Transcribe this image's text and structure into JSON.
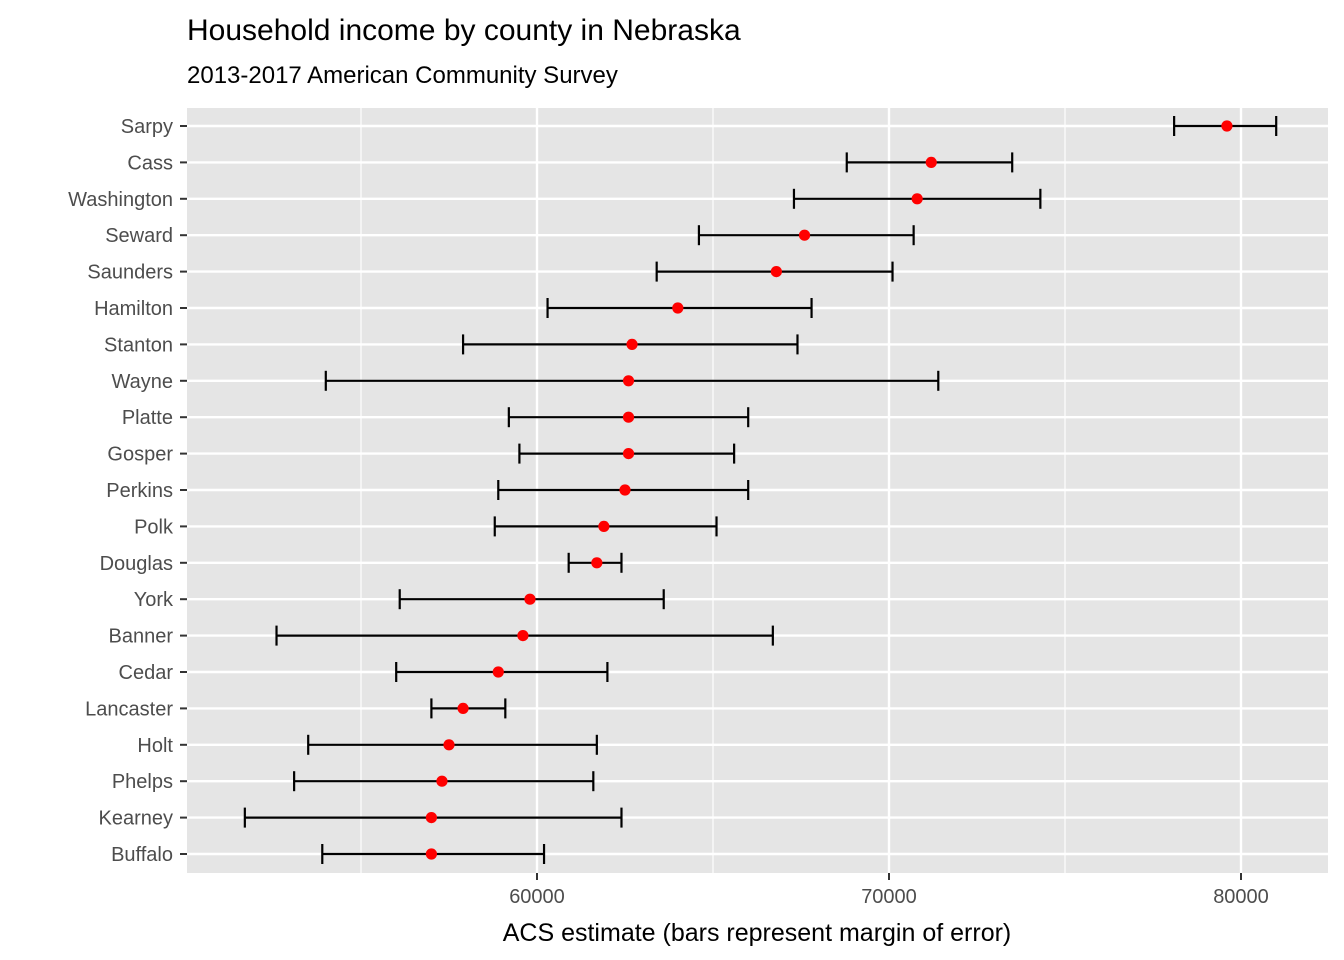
{
  "chart_data": {
    "type": "errorbar",
    "title": "Household income by county in Nebraska",
    "subtitle": "2013-2017 American Community Survey",
    "xlabel": "ACS estimate (bars represent margin of error)",
    "ylabel": "",
    "xlim": [
      50000,
      82500
    ],
    "x_ticks": [
      60000,
      70000,
      80000
    ],
    "x_tick_labels": [
      "60000",
      "70000",
      "80000"
    ],
    "grid": true,
    "legend": "none",
    "colors": {
      "panel_background": "#e5e5e5",
      "grid": "#ffffff",
      "point": "#ff0000",
      "bar": "#000000"
    },
    "categories": [
      "Sarpy",
      "Cass",
      "Washington",
      "Seward",
      "Saunders",
      "Hamilton",
      "Stanton",
      "Wayne",
      "Platte",
      "Gosper",
      "Perkins",
      "Polk",
      "Douglas",
      "York",
      "Banner",
      "Cedar",
      "Lancaster",
      "Holt",
      "Phelps",
      "Kearney",
      "Buffalo"
    ],
    "estimate": [
      79600,
      71200,
      70800,
      67600,
      66800,
      64000,
      62700,
      62600,
      62600,
      62600,
      62500,
      61900,
      61700,
      59800,
      59600,
      58900,
      57900,
      57500,
      57300,
      57000,
      57000
    ],
    "lower": [
      78100,
      68800,
      67300,
      64600,
      63400,
      60300,
      57900,
      54000,
      59200,
      59500,
      58900,
      58800,
      60900,
      56100,
      52600,
      56000,
      57000,
      53500,
      53100,
      51700,
      53900
    ],
    "upper": [
      81000,
      73500,
      74300,
      70700,
      70100,
      67800,
      67400,
      71400,
      66000,
      65600,
      66000,
      65100,
      62400,
      63600,
      66700,
      62000,
      59100,
      61700,
      61600,
      62400,
      60200
    ]
  }
}
